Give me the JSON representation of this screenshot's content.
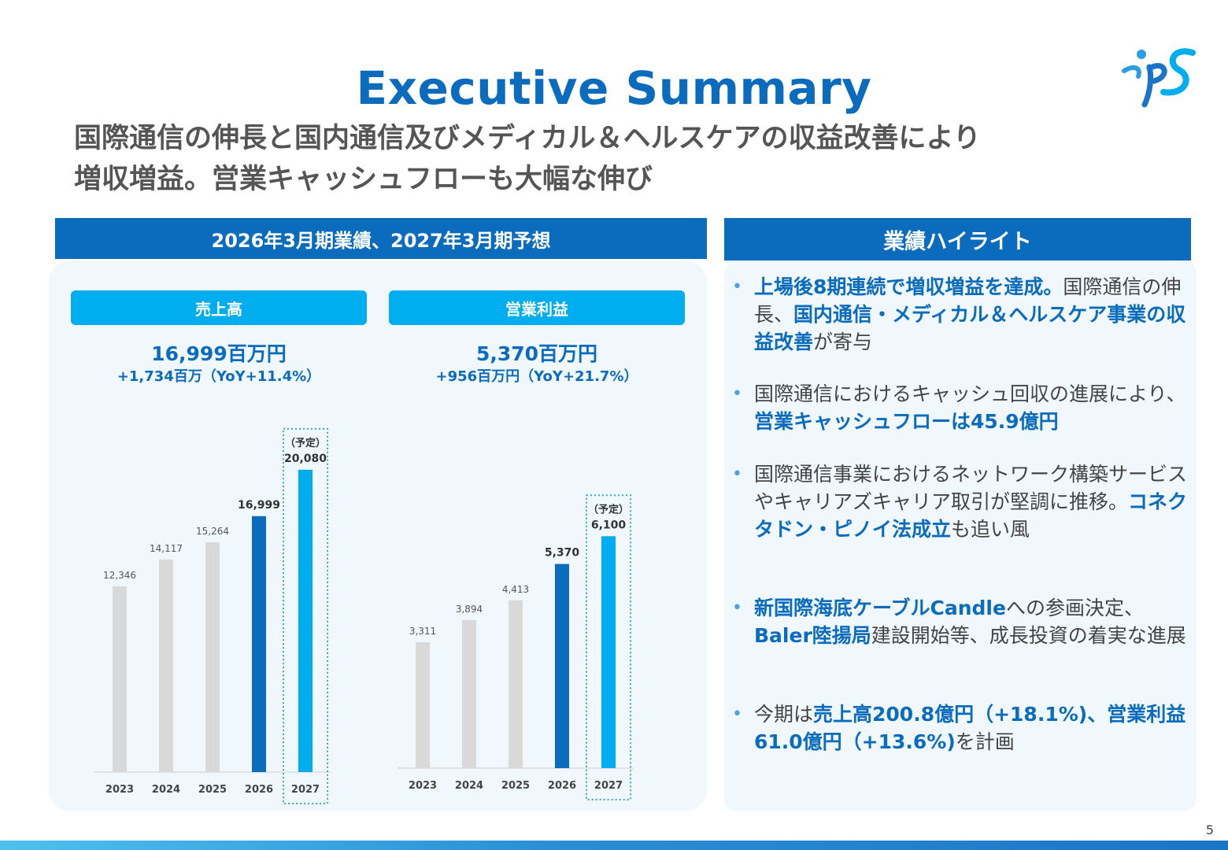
{
  "header": {
    "title": "Executive Summary",
    "subtitle_line1": "国際通信の伸長と国内通信及びメディカル＆ヘルスケアの収益改善により",
    "subtitle_line2": "増収増益。営業キャッシュフローも大幅な伸び",
    "logo_text": "ips"
  },
  "left_section": {
    "heading": "2026年3月期業績、2027年3月期予想"
  },
  "right_section": {
    "heading": "業績ハイライト"
  },
  "colors": {
    "brand_blue": "#0b6cbd",
    "accent_cyan": "#00adee",
    "past_bar": "#d9d9d9",
    "panel_bg": "#f0f7fd"
  },
  "chart_data": [
    {
      "type": "bar",
      "title": "売上高",
      "headline_value": "16,999百万円",
      "headline_delta": "+1,734百万（YoY+11.4%）",
      "categories": [
        "2023",
        "2024",
        "2025",
        "2026",
        "2027"
      ],
      "values": [
        12346,
        14117,
        15264,
        16999,
        20080
      ],
      "value_labels": [
        "12,346",
        "14,117",
        "15,264",
        "16,999",
        "20,080"
      ],
      "forecast_label": "（予定）",
      "forecast_index": 4,
      "highlight_index": 3,
      "ylim": [
        0,
        23000
      ]
    },
    {
      "type": "bar",
      "title": "営業利益",
      "headline_value": "5,370百万円",
      "headline_delta": "+956百万円（YoY+21.7%）",
      "categories": [
        "2023",
        "2024",
        "2025",
        "2026",
        "2027"
      ],
      "values": [
        3311,
        3894,
        4413,
        5370,
        6100
      ],
      "value_labels": [
        "3,311",
        "3,894",
        "4,413",
        "5,370",
        "6,100"
      ],
      "forecast_label": "（予定）",
      "forecast_index": 4,
      "highlight_index": 3,
      "ylim": [
        0,
        7100
      ]
    }
  ],
  "highlights": [
    {
      "segments": [
        {
          "text": "上場後8期連続で増収増益を達成。",
          "bold": true
        },
        {
          "text": "国際通信の伸長、",
          "bold": false
        },
        {
          "text": "国内通信・メディカル＆ヘルスケア事業の収益改善",
          "bold": true
        },
        {
          "text": "が寄与",
          "bold": false
        }
      ]
    },
    {
      "segments": [
        {
          "text": "国際通信におけるキャッシュ回収の進展により、",
          "bold": false
        },
        {
          "text": "営業キャッシュフローは45.9億円",
          "bold": true
        }
      ]
    },
    {
      "segments": [
        {
          "text": "国際通信事業におけるネットワーク構築サービスやキャリアズキャリア取引が堅調に推移。",
          "bold": false
        },
        {
          "text": "コネクタドン・ピノイ法成立",
          "bold": true
        },
        {
          "text": "も追い風",
          "bold": false
        }
      ]
    },
    {
      "segments": [
        {
          "text": "新国際海底ケーブルCandle",
          "bold": true
        },
        {
          "text": "への参画決定、",
          "bold": false
        },
        {
          "text": "Baler陸揚局",
          "bold": true
        },
        {
          "text": "建設開始等、成長投資の着実な進展",
          "bold": false
        }
      ]
    },
    {
      "segments": [
        {
          "text": "今期は",
          "bold": false
        },
        {
          "text": "売上高200.8億円（+18.1%)、営業利益61.0億円（+13.6%)",
          "bold": true
        },
        {
          "text": "を計画",
          "bold": false
        }
      ]
    }
  ],
  "footer": {
    "page_number": "5"
  }
}
